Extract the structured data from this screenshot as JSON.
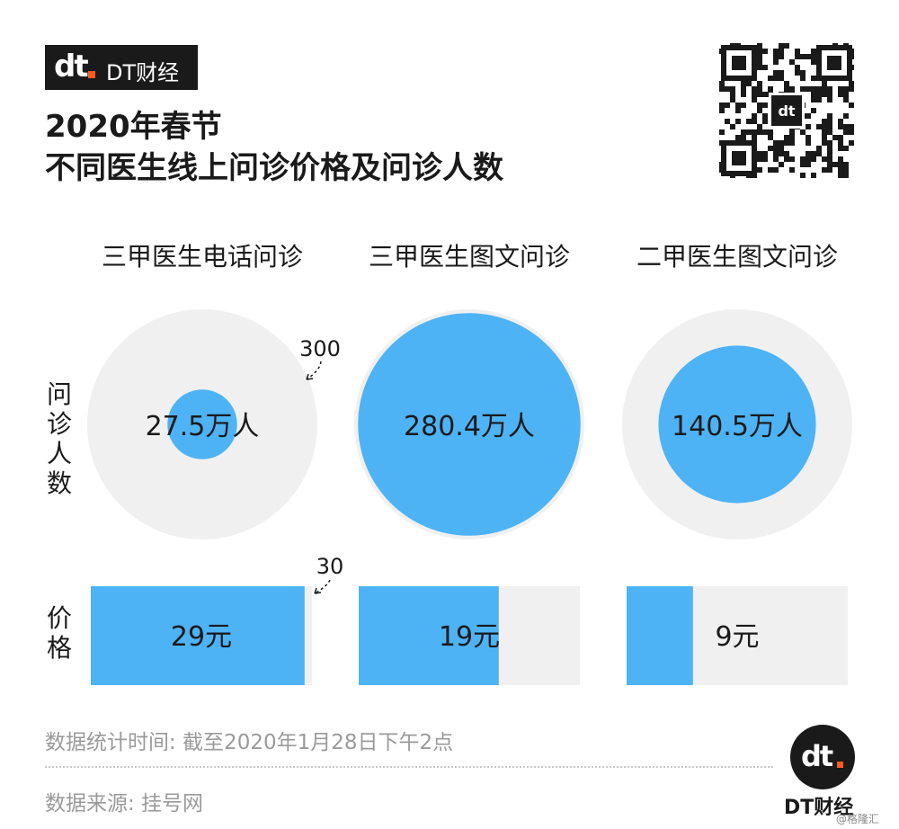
{
  "brand": {
    "logo_mark": "dt",
    "logo_text": "DT财经",
    "bottom_label": "DT财经"
  },
  "title_lines": [
    "2020年春节",
    "不同医生线上问诊价格及问诊人数"
  ],
  "credit": "@格隆汇",
  "footnotes": {
    "time": "数据统计时间: 截至2020年1月28日下午2点",
    "source": "数据来源: 挂号网"
  },
  "colors": {
    "accent": "#4db3f5",
    "track": "#f0f0f0",
    "text": "#1a1a1a",
    "muted": "#9a9a9a"
  },
  "chart_data": {
    "type": "bubble-and-bar",
    "categories": [
      "三甲医生电话问诊",
      "三甲医生图文问诊",
      "二甲医生图文问诊"
    ],
    "row_labels": {
      "consultations": "问诊人数",
      "price": "价格"
    },
    "consultations": {
      "values": [
        27.5,
        280.4,
        140.5
      ],
      "labels": [
        "27.5万人",
        "280.4万人",
        "140.5万人"
      ],
      "max": 300,
      "max_label": "300"
    },
    "price": {
      "values": [
        29,
        19,
        9
      ],
      "labels": [
        "29元",
        "19元",
        "9元"
      ],
      "max": 30,
      "max_label": "30"
    }
  }
}
